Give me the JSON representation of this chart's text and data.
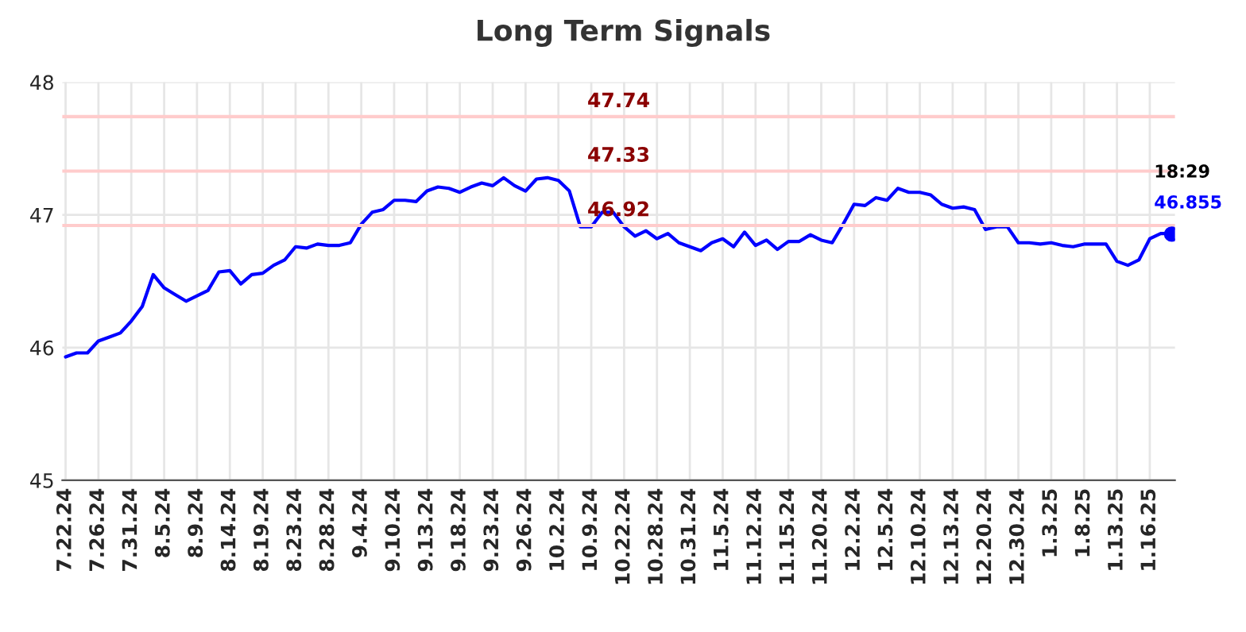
{
  "chart_data": {
    "type": "line",
    "title": "Long Term Signals",
    "categories": [
      "7.22.24",
      null,
      null,
      "7.26.24",
      null,
      null,
      "7.31.24",
      null,
      null,
      "8.5.24",
      null,
      null,
      "8.9.24",
      null,
      null,
      "8.14.24",
      null,
      null,
      "8.19.24",
      null,
      null,
      "8.23.24",
      null,
      null,
      "8.28.24",
      null,
      null,
      "9.4.24",
      null,
      null,
      "9.10.24",
      null,
      null,
      "9.13.24",
      null,
      null,
      "9.18.24",
      null,
      null,
      "9.23.24",
      null,
      null,
      "9.26.24",
      null,
      null,
      "10.2.24",
      null,
      null,
      "10.9.24",
      null,
      null,
      "10.22.24",
      null,
      null,
      "10.28.24",
      null,
      null,
      "10.31.24",
      null,
      null,
      "11.5.24",
      null,
      null,
      "11.12.24",
      null,
      null,
      "11.15.24",
      null,
      null,
      "11.20.24",
      null,
      null,
      "12.2.24",
      null,
      null,
      "12.5.24",
      null,
      null,
      "12.10.24",
      null,
      null,
      "12.13.24",
      null,
      null,
      "12.20.24",
      null,
      null,
      "12.30.24",
      null,
      null,
      "1.3.25",
      null,
      null,
      "1.8.25",
      null,
      null,
      "1.13.25",
      null,
      null,
      "1.16.25",
      null,
      null
    ],
    "series": [
      {
        "color": "#0000ff",
        "values": [
          45.93,
          45.96,
          45.96,
          46.05,
          46.08,
          46.11,
          46.2,
          46.31,
          46.55,
          46.45,
          46.4,
          46.35,
          46.39,
          46.43,
          46.57,
          46.58,
          46.48,
          46.55,
          46.56,
          46.62,
          46.66,
          46.76,
          46.75,
          46.78,
          46.77,
          46.77,
          46.79,
          46.93,
          47.02,
          47.04,
          47.11,
          47.11,
          47.1,
          47.18,
          47.21,
          47.2,
          47.17,
          47.21,
          47.24,
          47.22,
          47.28,
          47.22,
          47.18,
          47.27,
          47.28,
          47.26,
          47.18,
          46.91,
          46.91,
          47.02,
          47.02,
          46.91,
          46.84,
          46.88,
          46.82,
          46.86,
          46.79,
          46.76,
          46.73,
          46.79,
          46.82,
          46.76,
          46.87,
          46.77,
          46.81,
          46.74,
          46.8,
          46.8,
          46.85,
          46.81,
          46.79,
          46.93,
          47.08,
          47.07,
          47.13,
          47.11,
          47.2,
          47.17,
          47.17,
          47.15,
          47.08,
          47.05,
          47.06,
          47.04,
          46.89,
          46.91,
          46.91,
          46.79,
          46.79,
          46.78,
          46.79,
          46.77,
          46.76,
          46.78,
          46.78,
          46.78,
          46.65,
          46.62,
          46.66,
          46.82,
          46.86,
          46.86
        ]
      },
      {
        "type": "scatter",
        "color": "#0000ff",
        "marker": "circle",
        "values": [
          null,
          null,
          null,
          null,
          null,
          null,
          null,
          null,
          null,
          null,
          null,
          null,
          null,
          null,
          null,
          null,
          null,
          null,
          null,
          null,
          null,
          null,
          null,
          null,
          null,
          null,
          null,
          null,
          null,
          null,
          null,
          null,
          null,
          null,
          null,
          null,
          null,
          null,
          null,
          null,
          null,
          null,
          null,
          null,
          null,
          null,
          null,
          null,
          null,
          null,
          null,
          null,
          null,
          null,
          null,
          null,
          null,
          null,
          null,
          null,
          null,
          null,
          null,
          null,
          null,
          null,
          null,
          null,
          null,
          null,
          null,
          null,
          null,
          null,
          null,
          null,
          null,
          null,
          null,
          null,
          null,
          null,
          null,
          null,
          null,
          null,
          null,
          null,
          null,
          null,
          null,
          null,
          null,
          null,
          null,
          null,
          null,
          null,
          null,
          null,
          null,
          46.855
        ],
        "value_labels": [
          null,
          null,
          null,
          null,
          null,
          null,
          null,
          null,
          null,
          null,
          null,
          null,
          null,
          null,
          null,
          null,
          null,
          null,
          null,
          null,
          null,
          null,
          null,
          null,
          null,
          null,
          null,
          null,
          null,
          null,
          null,
          null,
          null,
          null,
          null,
          null,
          null,
          null,
          null,
          null,
          null,
          null,
          null,
          null,
          null,
          null,
          null,
          null,
          null,
          null,
          null,
          null,
          null,
          null,
          null,
          null,
          null,
          null,
          null,
          null,
          null,
          null,
          null,
          null,
          null,
          null,
          null,
          null,
          null,
          null,
          null,
          null,
          null,
          null,
          null,
          null,
          null,
          null,
          null,
          null,
          null,
          null,
          null,
          null,
          null,
          null,
          null,
          null,
          null,
          null,
          null,
          null,
          null,
          null,
          null,
          null,
          null,
          null,
          null,
          null,
          null,
          "46.855"
        ]
      }
    ],
    "annotations": [
      "18:29"
    ],
    "ref_lines": [
      {
        "axis": "y",
        "value": 47.74,
        "label": "47.74",
        "color": "#ffcccc"
      },
      {
        "axis": "y",
        "value": 47.33,
        "label": "47.33",
        "color": "#ffcccc"
      },
      {
        "axis": "y",
        "value": 46.92,
        "label": "46.92",
        "color": "#ffcccc"
      }
    ],
    "ylim": [
      45,
      48
    ],
    "yticks": [
      45,
      46,
      47,
      48
    ],
    "grid": true
  }
}
